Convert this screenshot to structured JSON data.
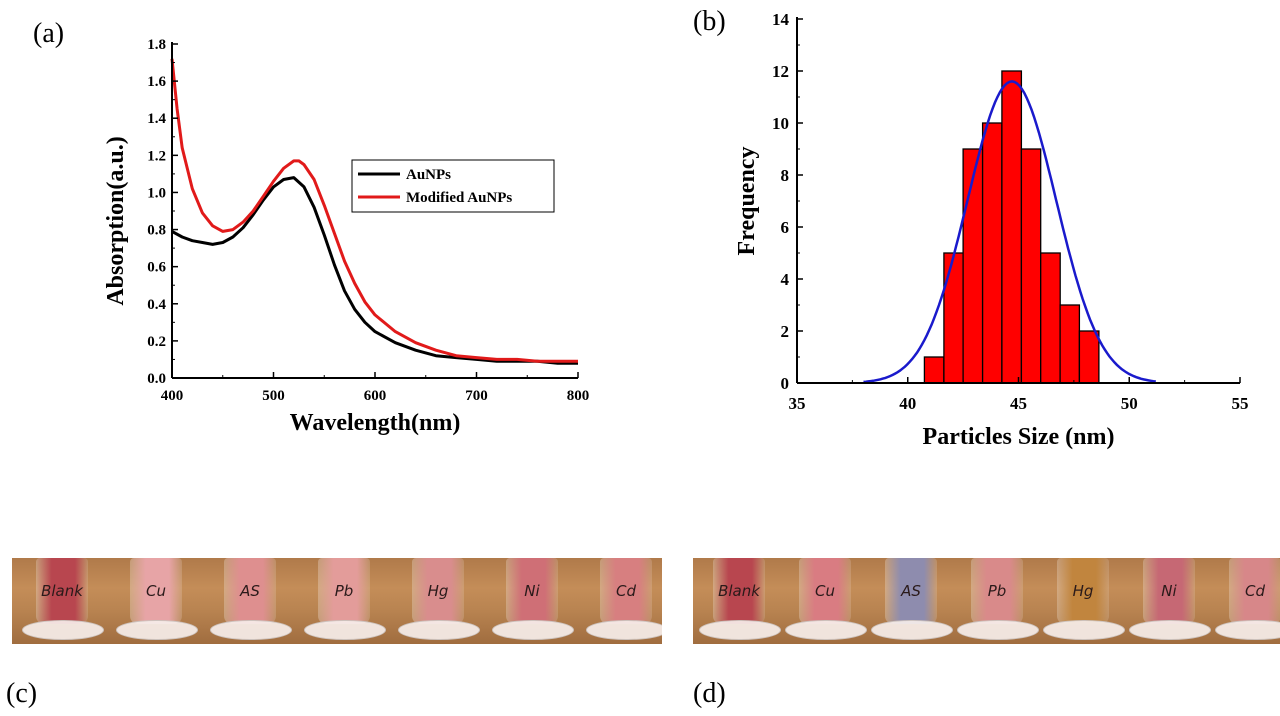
{
  "panels": {
    "a": "(a)",
    "b": "(b)",
    "c": "(c)",
    "d": "(d)"
  },
  "chart_data": [
    {
      "type": "line",
      "xlabel": "Wavelength(nm)",
      "ylabel": "Absorption(a.u.)",
      "xlim": [
        400,
        800
      ],
      "ylim": [
        0.0,
        1.8
      ],
      "xticks": [
        400,
        500,
        600,
        700,
        800
      ],
      "yticks": [
        0.0,
        0.2,
        0.4,
        0.6,
        0.8,
        1.0,
        1.2,
        1.4,
        1.6,
        1.8
      ],
      "legend_position": "right",
      "series": [
        {
          "name": "AuNPs",
          "color": "#000000",
          "x": [
            400,
            410,
            420,
            430,
            440,
            450,
            460,
            470,
            480,
            490,
            500,
            510,
            520,
            530,
            540,
            550,
            560,
            570,
            580,
            590,
            600,
            620,
            640,
            660,
            680,
            700,
            720,
            740,
            760,
            780,
            800
          ],
          "y": [
            0.79,
            0.76,
            0.74,
            0.73,
            0.72,
            0.73,
            0.76,
            0.81,
            0.88,
            0.96,
            1.03,
            1.07,
            1.08,
            1.03,
            0.92,
            0.77,
            0.61,
            0.47,
            0.37,
            0.3,
            0.25,
            0.19,
            0.15,
            0.12,
            0.11,
            0.1,
            0.09,
            0.09,
            0.09,
            0.08,
            0.08
          ]
        },
        {
          "name": "Modified AuNPs",
          "color": "#e11a1a",
          "x": [
            400,
            405,
            410,
            420,
            430,
            440,
            450,
            460,
            470,
            480,
            490,
            500,
            510,
            520,
            525,
            530,
            540,
            550,
            560,
            570,
            580,
            590,
            600,
            620,
            640,
            660,
            680,
            700,
            720,
            740,
            760,
            780,
            800
          ],
          "y": [
            1.72,
            1.45,
            1.24,
            1.02,
            0.89,
            0.82,
            0.79,
            0.8,
            0.84,
            0.9,
            0.98,
            1.06,
            1.13,
            1.17,
            1.17,
            1.15,
            1.07,
            0.93,
            0.78,
            0.63,
            0.51,
            0.41,
            0.34,
            0.25,
            0.19,
            0.15,
            0.12,
            0.11,
            0.1,
            0.1,
            0.09,
            0.09,
            0.09
          ]
        }
      ]
    },
    {
      "type": "bar",
      "xlabel": "Particles Size (nm)",
      "ylabel": "Frequency",
      "xlim": [
        35,
        55
      ],
      "ylim": [
        0,
        14
      ],
      "xticks": [
        35,
        40,
        45,
        50,
        55
      ],
      "yticks": [
        0,
        2,
        4,
        6,
        8,
        10,
        12,
        14
      ],
      "bar_color": "#ff0000",
      "bars": [
        {
          "x0": 40.75,
          "x1": 41.63,
          "value": 1
        },
        {
          "x0": 41.63,
          "x1": 42.5,
          "value": 5
        },
        {
          "x0": 42.5,
          "x1": 43.38,
          "value": 9
        },
        {
          "x0": 43.38,
          "x1": 44.25,
          "value": 10
        },
        {
          "x0": 44.25,
          "x1": 45.13,
          "value": 12
        },
        {
          "x0": 45.13,
          "x1": 46.0,
          "value": 9
        },
        {
          "x0": 46.0,
          "x1": 46.88,
          "value": 5
        },
        {
          "x0": 46.88,
          "x1": 47.75,
          "value": 3
        },
        {
          "x0": 47.75,
          "x1": 48.63,
          "value": 2
        }
      ],
      "fit_curve": {
        "type": "gaussian",
        "color": "#1a1acc",
        "mean": 44.7,
        "sd": 2.0,
        "peak": 11.6,
        "x_range": [
          38.0,
          51.2
        ]
      }
    }
  ],
  "photos": {
    "c": {
      "vials": [
        {
          "label": "Blank",
          "color": "#b8464f"
        },
        {
          "label": "Cu",
          "color": "#e7a4a6"
        },
        {
          "label": "AS",
          "color": "#de8f8f"
        },
        {
          "label": "Pb",
          "color": "#e39c9a"
        },
        {
          "label": "Hg",
          "color": "#d98d8d"
        },
        {
          "label": "Ni",
          "color": "#cf6f76"
        },
        {
          "label": "Cd",
          "color": "#d77f80"
        }
      ]
    },
    "d": {
      "vials": [
        {
          "label": "Blank",
          "color": "#b8464f"
        },
        {
          "label": "Cu",
          "color": "#d97c82"
        },
        {
          "label": "AS",
          "color": "#8e8cae"
        },
        {
          "label": "Pb",
          "color": "#d98a8a"
        },
        {
          "label": "Hg",
          "color": "#c1853e"
        },
        {
          "label": "Ni",
          "color": "#c66874"
        },
        {
          "label": "Cd",
          "color": "#d78789"
        }
      ]
    }
  }
}
